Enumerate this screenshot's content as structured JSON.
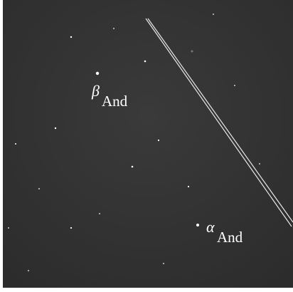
{
  "labels": [
    {
      "symbol": "β",
      "subscript": "And"
    },
    {
      "symbol": "α",
      "subscript": "And"
    }
  ]
}
